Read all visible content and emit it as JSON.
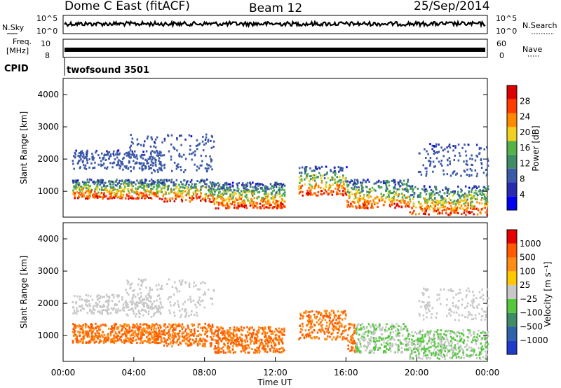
{
  "header": {
    "title": "Dome C East (fitACF)",
    "beam": "Beam 12",
    "date": "25/Sep/2014"
  },
  "top_panels": {
    "nsky_label": "N.Sky",
    "nsky_ticks": [
      "10^5",
      "10^0"
    ],
    "nsearch_label": "N.Search",
    "nsearch_ticks": [
      "10^5",
      "10^0"
    ],
    "freq_label": "Freq.",
    "freq_unit": "[MHz]",
    "freq_ticks": [
      "10",
      "8"
    ],
    "nave_label": "Nave",
    "nave_ticks": [
      "60",
      "0"
    ],
    "cpid_label": "CPID",
    "cpid_value": "twofsound 3501"
  },
  "chart_data": [
    {
      "type": "heatmap",
      "name": "power",
      "ylabel": "Slant Range [km]",
      "yticks": [
        1000,
        2000,
        3000,
        4000
      ],
      "ylim": [
        200,
        4500
      ],
      "xlim": [
        0,
        24
      ],
      "colorbar": {
        "label": "Power [dB]",
        "ticks": [
          4,
          8,
          12,
          16,
          20,
          24,
          28
        ],
        "range": [
          0,
          32
        ],
        "colors": [
          "#0000ee",
          "#2a2ab0",
          "#3d5aa8",
          "#3f8c67",
          "#55b24a",
          "#f0d020",
          "#ff8a00",
          "#ff3b00",
          "#dd0000"
        ]
      }
    },
    {
      "type": "heatmap",
      "name": "velocity",
      "ylabel": "Slant Range [km]",
      "yticks": [
        1000,
        2000,
        3000,
        4000
      ],
      "ylim": [
        200,
        4500
      ],
      "xlim": [
        0,
        24
      ],
      "xlabel": "Time UT",
      "xticks": [
        "00:00",
        "04:00",
        "08:00",
        "12:00",
        "16:00",
        "20:00",
        "00:00"
      ],
      "colorbar": {
        "label": "Velocity [m s⁻¹]",
        "ticks": [
          "1000",
          "500",
          "100",
          "25",
          "−25",
          "−100",
          "−500",
          "−1000"
        ],
        "colors": [
          "#1e3cc8",
          "#2f62a8",
          "#3f8c67",
          "#56c840",
          "#c8c8c8",
          "#ffc800",
          "#ff8c14",
          "#ff5a00",
          "#e60000"
        ]
      }
    }
  ]
}
